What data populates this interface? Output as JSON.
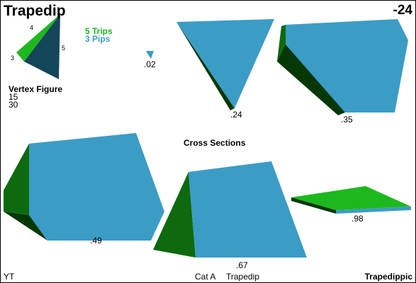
{
  "header": {
    "title": "Trapedip",
    "code": "-24"
  },
  "vertex_figure": {
    "label": "Vertex Figure",
    "numbers": [
      "15",
      "30"
    ],
    "side_labels": {
      "top": "4",
      "left": "3",
      "right": "5"
    }
  },
  "legend": {
    "trips": {
      "text": "5 Trips",
      "color": "#1db81d"
    },
    "pips": {
      "text": "3 Pips",
      "color": "#3b9cc6"
    }
  },
  "cross_sections": {
    "title": "Cross Sections",
    "slices": [
      {
        "id": "s02",
        "label": ".02"
      },
      {
        "id": "s24",
        "label": ".24"
      },
      {
        "id": "s35",
        "label": ".35"
      },
      {
        "id": "s49",
        "label": ".49"
      },
      {
        "id": "s67",
        "label": ".67"
      },
      {
        "id": "s98",
        "label": ".98"
      }
    ]
  },
  "footer": {
    "left": "YT",
    "category": "Cat A",
    "name": "Trapedip",
    "right": "Trapedippic"
  },
  "colors": {
    "blue_face": "#3b9cc6",
    "dark_green": "#063806",
    "mid_green": "#0e6a0e",
    "bright_green": "#1db81d",
    "navy": "#14465a"
  }
}
